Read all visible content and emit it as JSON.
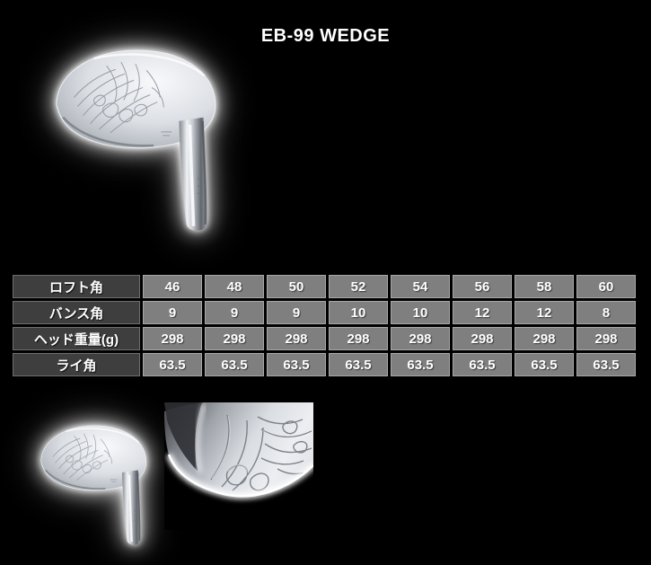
{
  "page": {
    "title": "EB-99 WEDGE"
  },
  "spec_table": {
    "rows": [
      {
        "label": "ロフト角",
        "values": [
          "46",
          "48",
          "50",
          "52",
          "54",
          "56",
          "58",
          "60"
        ]
      },
      {
        "label": "バンス角",
        "values": [
          "9",
          "9",
          "9",
          "10",
          "10",
          "12",
          "12",
          "8"
        ]
      },
      {
        "label": "ヘッド重量(g)",
        "values": [
          "298",
          "298",
          "298",
          "298",
          "298",
          "298",
          "298",
          "298"
        ]
      },
      {
        "label": "ライ角",
        "values": [
          "63.5",
          "63.5",
          "63.5",
          "63.5",
          "63.5",
          "63.5",
          "63.5",
          "63.5"
        ]
      }
    ]
  },
  "colors": {
    "background": "#000000",
    "title_text": "#ffffff",
    "header_cell_bg": "#3e3e3e",
    "header_cell_border": "#6e6e6e",
    "data_cell_bg": "#7f7f7f",
    "data_cell_border": "#a8a8a8",
    "cell_text": "#ffffff",
    "table_gap": "#000000",
    "glow": "#ffffff"
  }
}
